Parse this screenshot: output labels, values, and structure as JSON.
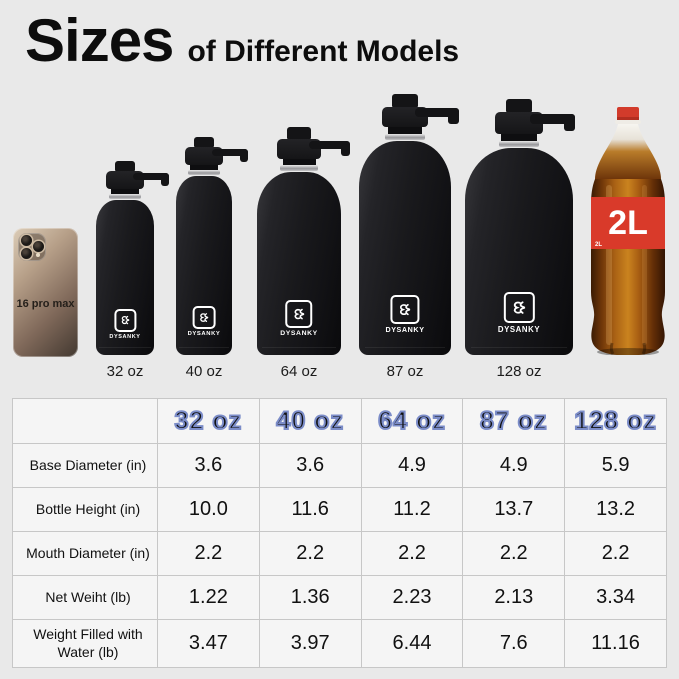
{
  "title": {
    "main": "Sizes",
    "rest": "of Different Models"
  },
  "phone": {
    "label": "16 pro max"
  },
  "brand": {
    "name": "DYSANKY",
    "logo_icon": "dysanky-curved-mark"
  },
  "bottles": [
    {
      "label": "32 oz"
    },
    {
      "label": "40 oz"
    },
    {
      "label": "64 oz"
    },
    {
      "label": "87 oz"
    },
    {
      "label": "128 oz"
    }
  ],
  "cola": {
    "label": "2L",
    "corner_label": "2L"
  },
  "table": {
    "column_headers": [
      "32 oz",
      "40 oz",
      "64 oz",
      "87 oz",
      "128 oz"
    ],
    "rows": [
      {
        "label": "Base Diameter (in)",
        "values": [
          "3.6",
          "3.6",
          "4.9",
          "4.9",
          "5.9"
        ]
      },
      {
        "label": "Bottle Height (in)",
        "values": [
          "10.0",
          "11.6",
          "11.2",
          "13.7",
          "13.2"
        ]
      },
      {
        "label": "Mouth Diameter (in)",
        "values": [
          "2.2",
          "2.2",
          "2.2",
          "2.2",
          "2.2"
        ]
      },
      {
        "label": "Net Weiht (lb)",
        "values": [
          "1.22",
          "1.36",
          "2.23",
          "2.13",
          "3.34"
        ]
      },
      {
        "label": "Weight Filled with Water (lb)",
        "values": [
          "3.47",
          "3.97",
          "6.44",
          "7.6",
          "11.16"
        ]
      }
    ]
  },
  "chart_data": {
    "type": "table",
    "title": "Sizes of Different Models",
    "columns": [
      "32 oz",
      "40 oz",
      "64 oz",
      "87 oz",
      "128 oz"
    ],
    "rows": [
      {
        "metric": "Base Diameter (in)",
        "values": [
          3.6,
          3.6,
          4.9,
          4.9,
          5.9
        ]
      },
      {
        "metric": "Bottle Height (in)",
        "values": [
          10.0,
          11.6,
          11.2,
          13.7,
          13.2
        ]
      },
      {
        "metric": "Mouth Diameter (in)",
        "values": [
          2.2,
          2.2,
          2.2,
          2.2,
          2.2
        ]
      },
      {
        "metric": "Net Weiht (lb)",
        "values": [
          1.22,
          1.36,
          2.23,
          2.13,
          3.34
        ]
      },
      {
        "metric": "Weight Filled with Water (lb)",
        "values": [
          3.47,
          3.97,
          6.44,
          7.6,
          11.16
        ]
      }
    ]
  },
  "colors": {
    "background": "#e9e9e9",
    "table_cell": "#f5f5f5",
    "table_border": "#c7c7c7",
    "header_outline_blue": "#7b8cc8",
    "bottle_black": "#17171a",
    "cola_red": "#d93a2a"
  }
}
